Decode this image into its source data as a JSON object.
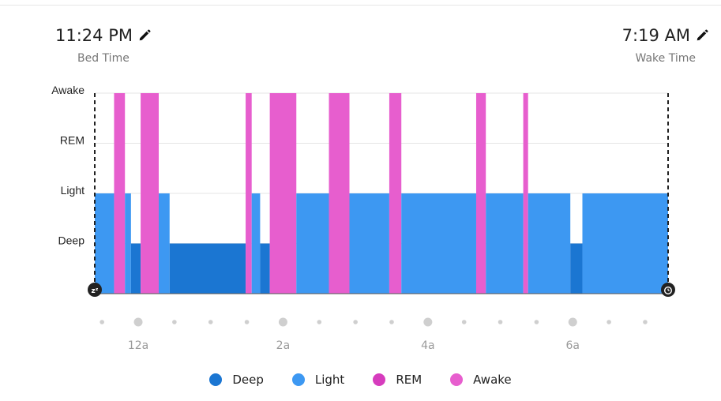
{
  "header": {
    "bed_time": "11:24 PM",
    "bed_time_label": "Bed Time",
    "wake_time": "7:19 AM",
    "wake_time_label": "Wake Time",
    "edit_icon": "pencil-icon"
  },
  "colors": {
    "Deep": "#1b76d2",
    "Light": "#3d98f2",
    "REM": "#d63cbd",
    "Awake": "#e75ece",
    "grid": "#e6e6e6",
    "tick_dot": "#cfcfcf",
    "axis_text": "#9a9a9a",
    "endpoint": "#222222"
  },
  "chart_data": {
    "type": "area",
    "title": "",
    "xlabel": "",
    "ylabel": "",
    "y_categories": [
      "Deep",
      "Light",
      "REM",
      "Awake"
    ],
    "x_range": [
      "23:24",
      "07:19"
    ],
    "x_tick_labels": [
      "12a",
      "2a",
      "4a",
      "6a"
    ],
    "x_tick_times": [
      "00:00",
      "02:00",
      "04:00",
      "06:00"
    ],
    "grid": true,
    "legend_position": "bottom",
    "legend": [
      "Deep",
      "Light",
      "REM",
      "Awake"
    ],
    "start_icon": "sleep-zzz-icon",
    "end_icon": "alarm-clock-icon",
    "segments": [
      {
        "start": "23:24",
        "end": "23:40",
        "stage": "Light"
      },
      {
        "start": "23:40",
        "end": "23:49",
        "stage": "Awake"
      },
      {
        "start": "23:49",
        "end": "23:54",
        "stage": "Light"
      },
      {
        "start": "23:54",
        "end": "00:02",
        "stage": "Deep"
      },
      {
        "start": "00:02",
        "end": "00:17",
        "stage": "Awake"
      },
      {
        "start": "00:17",
        "end": "00:26",
        "stage": "Light"
      },
      {
        "start": "00:26",
        "end": "01:29",
        "stage": "Deep"
      },
      {
        "start": "01:29",
        "end": "01:34",
        "stage": "Awake"
      },
      {
        "start": "01:34",
        "end": "01:41",
        "stage": "Light"
      },
      {
        "start": "01:41",
        "end": "01:49",
        "stage": "Deep"
      },
      {
        "start": "01:49",
        "end": "02:11",
        "stage": "Awake"
      },
      {
        "start": "02:11",
        "end": "02:38",
        "stage": "Light"
      },
      {
        "start": "02:38",
        "end": "02:55",
        "stage": "Awake"
      },
      {
        "start": "02:55",
        "end": "03:28",
        "stage": "Light"
      },
      {
        "start": "03:28",
        "end": "03:38",
        "stage": "Awake"
      },
      {
        "start": "03:38",
        "end": "04:40",
        "stage": "Light"
      },
      {
        "start": "04:40",
        "end": "04:48",
        "stage": "Awake"
      },
      {
        "start": "04:48",
        "end": "05:19",
        "stage": "Light"
      },
      {
        "start": "05:19",
        "end": "05:23",
        "stage": "Awake"
      },
      {
        "start": "05:23",
        "end": "05:58",
        "stage": "Light"
      },
      {
        "start": "05:58",
        "end": "06:08",
        "stage": "Deep"
      },
      {
        "start": "06:08",
        "end": "07:19",
        "stage": "Light"
      }
    ]
  }
}
